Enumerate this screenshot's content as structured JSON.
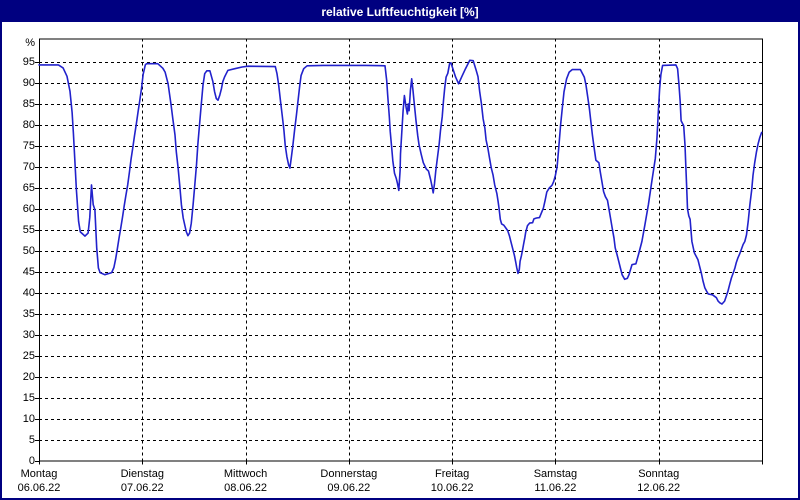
{
  "window": {
    "title": "relative Luftfeuchtigkeit [%]"
  },
  "colors": {
    "title_bar_bg": "#000080",
    "title_text": "#ffffff",
    "outer_border": "#000080",
    "plot_bg": "#ffffff",
    "grid": "#000000",
    "axis": "#000000",
    "line": "#2222cc",
    "label_text": "#000000"
  },
  "chart_data": {
    "type": "line",
    "title": "relative Luftfeuchtigkeit [%]",
    "xlabel": "",
    "ylabel": "%",
    "ylim": [
      0,
      100
    ],
    "xlim_hours": [
      0,
      168
    ],
    "grid": "dashed-horizontal-every-5-and-vertical-every-day",
    "legend_position": "none",
    "y_ticks": [
      95,
      90,
      85,
      80,
      75,
      70,
      65,
      60,
      55,
      50,
      45,
      40,
      35,
      30,
      25,
      20,
      15,
      10,
      5,
      0
    ],
    "x_days": [
      {
        "name": "Montag",
        "date": "06.06.22"
      },
      {
        "name": "Dienstag",
        "date": "07.06.22"
      },
      {
        "name": "Mittwoch",
        "date": "08.06.22"
      },
      {
        "name": "Donnerstag",
        "date": "09.06.22"
      },
      {
        "name": "Freitag",
        "date": "10.06.22"
      },
      {
        "name": "Samstag",
        "date": "11.06.22"
      },
      {
        "name": "Sonntag",
        "date": "12.06.22"
      }
    ],
    "series": [
      {
        "name": "relative Luftfeuchtigkeit",
        "unit": "%",
        "color": "#2222cc",
        "points_hours_value": [
          [
            0,
            94.3
          ],
          [
            4.5,
            94.3
          ],
          [
            5.6,
            93.6
          ],
          [
            6.5,
            91.6
          ],
          [
            7.2,
            88
          ],
          [
            7.7,
            83
          ],
          [
            8,
            78
          ],
          [
            8.4,
            70
          ],
          [
            8.7,
            64.5
          ],
          [
            9.2,
            57
          ],
          [
            9.6,
            54.5
          ],
          [
            10.7,
            53.5
          ],
          [
            11.4,
            54.2
          ],
          [
            11.8,
            58
          ],
          [
            12.2,
            65.7
          ],
          [
            12.6,
            61
          ],
          [
            13,
            59.8
          ],
          [
            13.4,
            50.7
          ],
          [
            13.8,
            45.9
          ],
          [
            14.2,
            44.8
          ],
          [
            15.3,
            44.3
          ],
          [
            16.9,
            44.8
          ],
          [
            17.4,
            46
          ],
          [
            17.8,
            48
          ],
          [
            18.2,
            50.4
          ],
          [
            18.6,
            53
          ],
          [
            19,
            55.5
          ],
          [
            19.4,
            58
          ],
          [
            19.8,
            60.7
          ],
          [
            20.2,
            63.2
          ],
          [
            20.6,
            65.7
          ],
          [
            21,
            68.7
          ],
          [
            21.4,
            71.9
          ],
          [
            21.8,
            74.6
          ],
          [
            22.2,
            77.4
          ],
          [
            22.6,
            80.2
          ],
          [
            23,
            83
          ],
          [
            23.4,
            85.7
          ],
          [
            23.8,
            88.5
          ],
          [
            24.2,
            92
          ],
          [
            24.7,
            94.3
          ],
          [
            25,
            94.6
          ],
          [
            27.6,
            94.6
          ],
          [
            28.8,
            93.5
          ],
          [
            29.3,
            92.6
          ],
          [
            30,
            89.8
          ],
          [
            30.7,
            84.7
          ],
          [
            31.1,
            81.5
          ],
          [
            31.6,
            77.6
          ],
          [
            31.9,
            73.6
          ],
          [
            32.3,
            70
          ],
          [
            32.7,
            65.7
          ],
          [
            33.1,
            61
          ],
          [
            33.5,
            57.8
          ],
          [
            34.2,
            54.6
          ],
          [
            34.6,
            53.6
          ],
          [
            35,
            54.2
          ],
          [
            35.4,
            56.6
          ],
          [
            35.8,
            61
          ],
          [
            36.2,
            65.7
          ],
          [
            36.6,
            70.5
          ],
          [
            36.9,
            75.2
          ],
          [
            37.3,
            80
          ],
          [
            37.7,
            84.7
          ],
          [
            38.1,
            89.5
          ],
          [
            38.5,
            92.2
          ],
          [
            39,
            92.9
          ],
          [
            39.7,
            92.9
          ],
          [
            40.4,
            90.3
          ],
          [
            40.8,
            87.9
          ],
          [
            41.2,
            86.3
          ],
          [
            41.6,
            85.9
          ],
          [
            42,
            87.1
          ],
          [
            42.4,
            88.7
          ],
          [
            42.7,
            90.3
          ],
          [
            43.1,
            91.4
          ],
          [
            43.5,
            92.2
          ],
          [
            43.9,
            93
          ],
          [
            45.5,
            93.4
          ],
          [
            47.2,
            93.8
          ],
          [
            48.6,
            94
          ],
          [
            54.9,
            93.9
          ],
          [
            55.3,
            92.2
          ],
          [
            55.7,
            89.5
          ],
          [
            56.1,
            85.9
          ],
          [
            56.5,
            82.3
          ],
          [
            56.9,
            78.8
          ],
          [
            57.2,
            75.2
          ],
          [
            57.6,
            72.4
          ],
          [
            58,
            70.5
          ],
          [
            58.3,
            69.7
          ],
          [
            58.6,
            72
          ],
          [
            59,
            75.2
          ],
          [
            59.4,
            78.8
          ],
          [
            59.8,
            82.3
          ],
          [
            60.2,
            85.9
          ],
          [
            60.6,
            89.5
          ],
          [
            60.9,
            91.8
          ],
          [
            61.5,
            93.4
          ],
          [
            62.3,
            94.1
          ],
          [
            66,
            94.2
          ],
          [
            71,
            94.2
          ],
          [
            76,
            94.2
          ],
          [
            80.4,
            94.1
          ],
          [
            80.8,
            90.6
          ],
          [
            81,
            87.4
          ],
          [
            81.4,
            82
          ],
          [
            81.6,
            78.5
          ],
          [
            82,
            74
          ],
          [
            82.2,
            71.5
          ],
          [
            82.6,
            68.5
          ],
          [
            83,
            67.3
          ],
          [
            83.3,
            66
          ],
          [
            83.6,
            64.4
          ],
          [
            83.9,
            69.1
          ],
          [
            84,
            73.1
          ],
          [
            84.3,
            78.3
          ],
          [
            84.6,
            83.4
          ],
          [
            84.9,
            87
          ],
          [
            85.3,
            84.2
          ],
          [
            85.6,
            82.6
          ],
          [
            85.8,
            85
          ],
          [
            86,
            83.4
          ],
          [
            86.3,
            88.2
          ],
          [
            86.6,
            91
          ],
          [
            86.9,
            88.2
          ],
          [
            87.2,
            85
          ],
          [
            87.6,
            81
          ],
          [
            88,
            77.5
          ],
          [
            88.3,
            75.3
          ],
          [
            88.8,
            73
          ],
          [
            89.3,
            71
          ],
          [
            90,
            69.5
          ],
          [
            90.5,
            69
          ],
          [
            91,
            67
          ],
          [
            91.3,
            65.5
          ],
          [
            91.6,
            63.8
          ],
          [
            91.9,
            66
          ],
          [
            92.2,
            69.1
          ],
          [
            92.6,
            72.3
          ],
          [
            93,
            75.5
          ],
          [
            93.3,
            78.7
          ],
          [
            93.7,
            81.9
          ],
          [
            94,
            85.8
          ],
          [
            94.3,
            89
          ],
          [
            94.6,
            91.4
          ],
          [
            95,
            92.3
          ],
          [
            95.4,
            94.6
          ],
          [
            95.7,
            94.8
          ],
          [
            96.2,
            93.3
          ],
          [
            96.8,
            91.4
          ],
          [
            97.5,
            89.8
          ],
          [
            98.2,
            91.4
          ],
          [
            99.1,
            93.4
          ],
          [
            100.1,
            95.4
          ],
          [
            100.9,
            95.3
          ],
          [
            101.6,
            93
          ],
          [
            102,
            91.5
          ],
          [
            102.4,
            87.9
          ],
          [
            102.8,
            85.1
          ],
          [
            103.2,
            81.5
          ],
          [
            103.6,
            79.2
          ],
          [
            103.9,
            76.4
          ],
          [
            104.3,
            74.4
          ],
          [
            104.7,
            72
          ],
          [
            105.1,
            69.7
          ],
          [
            105.5,
            68.1
          ],
          [
            105.9,
            65.7
          ],
          [
            106.4,
            63.6
          ],
          [
            106.7,
            61.6
          ],
          [
            106.9,
            60
          ],
          [
            107.2,
            57.5
          ],
          [
            107.5,
            56.4
          ],
          [
            108,
            56.1
          ],
          [
            108.5,
            55.4
          ],
          [
            108.9,
            54.8
          ],
          [
            109.3,
            53.6
          ],
          [
            109.7,
            52
          ],
          [
            110.1,
            50.4
          ],
          [
            110.5,
            48.8
          ],
          [
            110.8,
            47.2
          ],
          [
            111,
            46
          ],
          [
            111.3,
            44.6
          ],
          [
            111.6,
            45.5
          ],
          [
            111.8,
            47.5
          ],
          [
            112.1,
            48.8
          ],
          [
            112.4,
            50.4
          ],
          [
            112.6,
            51.6
          ],
          [
            112.9,
            53.2
          ],
          [
            113.1,
            54.4
          ],
          [
            113.5,
            56
          ],
          [
            114,
            56.6
          ],
          [
            114.7,
            56.7
          ],
          [
            115,
            57.6
          ],
          [
            115.6,
            57.8
          ],
          [
            116.3,
            57.9
          ],
          [
            116.8,
            59.2
          ],
          [
            117.2,
            60.2
          ],
          [
            117.6,
            62
          ],
          [
            118,
            64
          ],
          [
            118.6,
            65
          ],
          [
            119.2,
            65.6
          ],
          [
            119.6,
            66.5
          ],
          [
            120,
            68
          ],
          [
            120.4,
            70
          ],
          [
            120.8,
            75
          ],
          [
            121.2,
            80
          ],
          [
            121.6,
            84
          ],
          [
            122,
            87.9
          ],
          [
            122.6,
            91
          ],
          [
            123.2,
            92.6
          ],
          [
            123.9,
            93.2
          ],
          [
            125.8,
            93.2
          ],
          [
            126.7,
            91.4
          ],
          [
            127.1,
            89.5
          ],
          [
            127.5,
            86.7
          ],
          [
            127.9,
            83.9
          ],
          [
            128.3,
            80.3
          ],
          [
            128.6,
            77.6
          ],
          [
            129,
            74.4
          ],
          [
            129.4,
            71.6
          ],
          [
            130.1,
            71
          ],
          [
            130.4,
            68.9
          ],
          [
            130.8,
            66.5
          ],
          [
            131.2,
            64.1
          ],
          [
            131.6,
            62.9
          ],
          [
            132.1,
            62
          ],
          [
            132.4,
            60.2
          ],
          [
            132.8,
            57.8
          ],
          [
            133.2,
            55.4
          ],
          [
            133.6,
            53
          ],
          [
            133.9,
            50.7
          ],
          [
            134.3,
            49.1
          ],
          [
            134.7,
            47.5
          ],
          [
            135.1,
            45.9
          ],
          [
            135.5,
            44.3
          ],
          [
            136.1,
            43.2
          ],
          [
            136.7,
            43.4
          ],
          [
            137.1,
            44.3
          ],
          [
            137.8,
            46.7
          ],
          [
            138.7,
            46.9
          ],
          [
            139.3,
            49.1
          ],
          [
            140.1,
            52.2
          ],
          [
            140.8,
            56.2
          ],
          [
            141.6,
            61
          ],
          [
            142.4,
            66.5
          ],
          [
            143.2,
            72
          ],
          [
            143.6,
            77
          ],
          [
            143.9,
            83
          ],
          [
            144.2,
            88.5
          ],
          [
            144.5,
            92
          ],
          [
            144.9,
            94.2
          ],
          [
            148,
            94.3
          ],
          [
            148.4,
            93.4
          ],
          [
            148.7,
            89.8
          ],
          [
            149,
            85.5
          ],
          [
            149.2,
            81
          ],
          [
            149.8,
            79.8
          ],
          [
            150.1,
            75.2
          ],
          [
            150.3,
            70.3
          ],
          [
            150.5,
            65
          ],
          [
            150.7,
            60
          ],
          [
            151,
            58.3
          ],
          [
            151.3,
            57.5
          ],
          [
            151.7,
            52.2
          ],
          [
            152.3,
            49.5
          ],
          [
            153.1,
            47.9
          ],
          [
            153.5,
            46.3
          ],
          [
            153.9,
            44.7
          ],
          [
            154.3,
            42.8
          ],
          [
            154.7,
            41.2
          ],
          [
            155.1,
            40.4
          ],
          [
            155.5,
            39.7
          ],
          [
            156.5,
            39.5
          ],
          [
            157.4,
            38.8
          ],
          [
            157.8,
            38
          ],
          [
            158.2,
            37.6
          ],
          [
            158.7,
            37.3
          ],
          [
            159.3,
            38
          ],
          [
            159.7,
            39.2
          ],
          [
            160.1,
            40.4
          ],
          [
            160.5,
            42
          ],
          [
            160.9,
            43.5
          ],
          [
            161.3,
            44.7
          ],
          [
            161.7,
            45.9
          ],
          [
            162,
            47.1
          ],
          [
            162.4,
            48.3
          ],
          [
            162.8,
            49.2
          ],
          [
            163.2,
            50.3
          ],
          [
            163.6,
            51.5
          ],
          [
            164,
            52.2
          ],
          [
            164.4,
            53.8
          ],
          [
            164.8,
            57
          ],
          [
            165.2,
            61
          ],
          [
            165.6,
            64.5
          ],
          [
            165.9,
            68
          ],
          [
            166.3,
            71
          ],
          [
            166.7,
            73.5
          ],
          [
            167.1,
            75.5
          ],
          [
            167.5,
            77
          ],
          [
            167.9,
            78.2
          ]
        ]
      }
    ]
  }
}
